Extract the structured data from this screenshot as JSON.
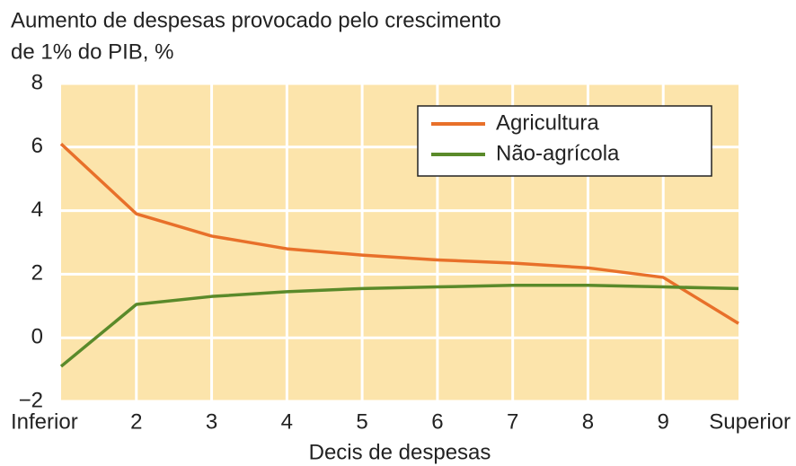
{
  "chart_data": {
    "type": "line",
    "title": [
      "Aumento de despesas provocado pelo crescimento",
      "de 1% do PIB, %"
    ],
    "x_label": "Decis de despesas",
    "categories": [
      "Inferior",
      "2",
      "3",
      "4",
      "5",
      "6",
      "7",
      "8",
      "9",
      "Superior"
    ],
    "series": [
      {
        "name": "Agricultura",
        "color": "#e8702a",
        "values": [
          6.1,
          3.9,
          3.2,
          2.8,
          2.6,
          2.45,
          2.35,
          2.2,
          1.9,
          0.45
        ]
      },
      {
        "name": "Não-agrícola",
        "color": "#5a8a2a",
        "values": [
          -0.9,
          1.05,
          1.3,
          1.45,
          1.55,
          1.6,
          1.65,
          1.65,
          1.6,
          1.55
        ]
      }
    ],
    "ylim": [
      -2,
      8
    ],
    "yticks": [
      {
        "value": -2,
        "label": "−2"
      },
      0,
      2,
      4,
      6,
      8
    ],
    "grid": true,
    "legend": "top-right"
  }
}
